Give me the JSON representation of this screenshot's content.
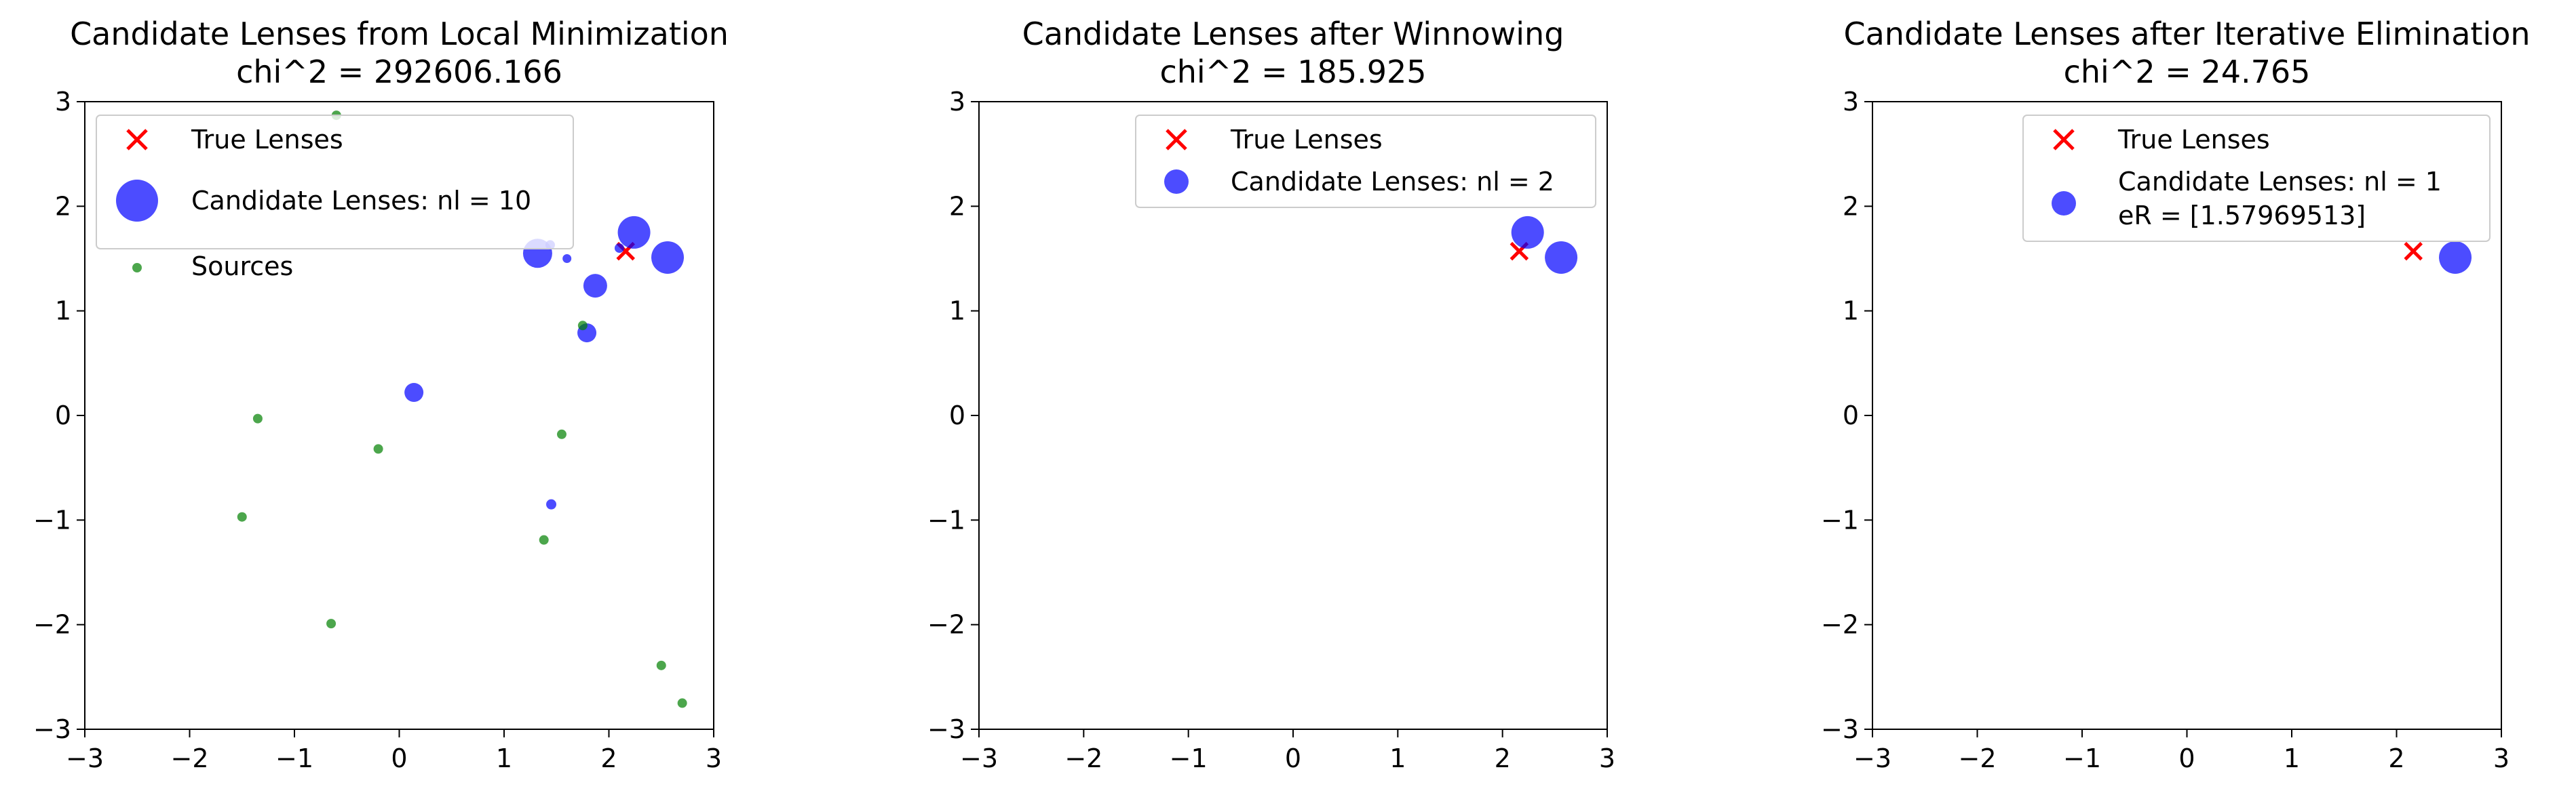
{
  "chart_data": [
    {
      "type": "scatter",
      "title": "Candidate Lenses from Local Minimization",
      "subtitle": "chi^2 = 292606.166",
      "xlim": [
        -3,
        3
      ],
      "ylim": [
        -3,
        3
      ],
      "xticks": [
        -3,
        -2,
        -1,
        0,
        1,
        2,
        3
      ],
      "yticks": [
        -3,
        -2,
        -1,
        0,
        1,
        2,
        3
      ],
      "legend_position": "upper-left",
      "series": [
        {
          "name": "True Lenses",
          "marker": "x",
          "color": "#ff0000",
          "points": [
            {
              "x": 2.16,
              "y": 1.57
            }
          ]
        },
        {
          "name": "Candidate Lenses: nl = 10",
          "marker": "circle",
          "color": "#0000ff",
          "legend_size": "large",
          "points": [
            {
              "x": 2.24,
              "y": 1.75,
              "size": 4
            },
            {
              "x": 2.56,
              "y": 1.51,
              "size": 4
            },
            {
              "x": 1.32,
              "y": 1.55,
              "size": 3.5
            },
            {
              "x": 1.87,
              "y": 1.24,
              "size": 2.7
            },
            {
              "x": 1.79,
              "y": 0.79,
              "size": 2.0
            },
            {
              "x": 0.14,
              "y": 0.22,
              "size": 2.0
            },
            {
              "x": 1.45,
              "y": -0.85,
              "size": 0.7
            },
            {
              "x": 1.44,
              "y": 1.63,
              "size": 0.6
            },
            {
              "x": 2.1,
              "y": 1.6,
              "size": 0.6
            },
            {
              "x": 1.6,
              "y": 1.5,
              "size": 0.5
            }
          ]
        },
        {
          "name": "Sources",
          "marker": "circle",
          "color": "#008000",
          "points": [
            {
              "x": -0.6,
              "y": 2.87
            },
            {
              "x": 1.75,
              "y": 0.86
            },
            {
              "x": -1.35,
              "y": -0.03
            },
            {
              "x": -0.2,
              "y": -0.32
            },
            {
              "x": 1.55,
              "y": -0.18
            },
            {
              "x": -1.5,
              "y": -0.97
            },
            {
              "x": 1.38,
              "y": -1.19
            },
            {
              "x": -0.65,
              "y": -1.99
            },
            {
              "x": 2.5,
              "y": -2.39
            },
            {
              "x": 2.7,
              "y": -2.75
            }
          ]
        }
      ]
    },
    {
      "type": "scatter",
      "title": "Candidate Lenses after Winnowing",
      "subtitle": "chi^2 = 185.925",
      "xlim": [
        -3,
        3
      ],
      "ylim": [
        -3,
        3
      ],
      "xticks": [
        -3,
        -2,
        -1,
        0,
        1,
        2,
        3
      ],
      "yticks": [
        -3,
        -2,
        -1,
        0,
        1,
        2,
        3
      ],
      "legend_position": "upper-right",
      "series": [
        {
          "name": "True Lenses",
          "marker": "x",
          "color": "#ff0000",
          "points": [
            {
              "x": 2.16,
              "y": 1.57
            }
          ]
        },
        {
          "name": "Candidate Lenses: nl = 2",
          "marker": "circle",
          "color": "#0000ff",
          "points": [
            {
              "x": 2.24,
              "y": 1.75,
              "size": 4
            },
            {
              "x": 2.56,
              "y": 1.51,
              "size": 4
            }
          ]
        }
      ]
    },
    {
      "type": "scatter",
      "title": "Candidate Lenses after Iterative Elimination",
      "subtitle": "chi^2 = 24.765",
      "xlim": [
        -3,
        3
      ],
      "ylim": [
        -3,
        3
      ],
      "xticks": [
        -3,
        -2,
        -1,
        0,
        1,
        2,
        3
      ],
      "yticks": [
        -3,
        -2,
        -1,
        0,
        1,
        2,
        3
      ],
      "legend_position": "upper-right",
      "series": [
        {
          "name": "True Lenses",
          "marker": "x",
          "color": "#ff0000",
          "points": [
            {
              "x": 2.16,
              "y": 1.57
            }
          ]
        },
        {
          "name": "Candidate Lenses: nl = 1",
          "name_line2": " eR = [1.57969513]",
          "marker": "circle",
          "color": "#0000ff",
          "points": [
            {
              "x": 2.56,
              "y": 1.51,
              "size": 4
            }
          ]
        }
      ]
    }
  ]
}
